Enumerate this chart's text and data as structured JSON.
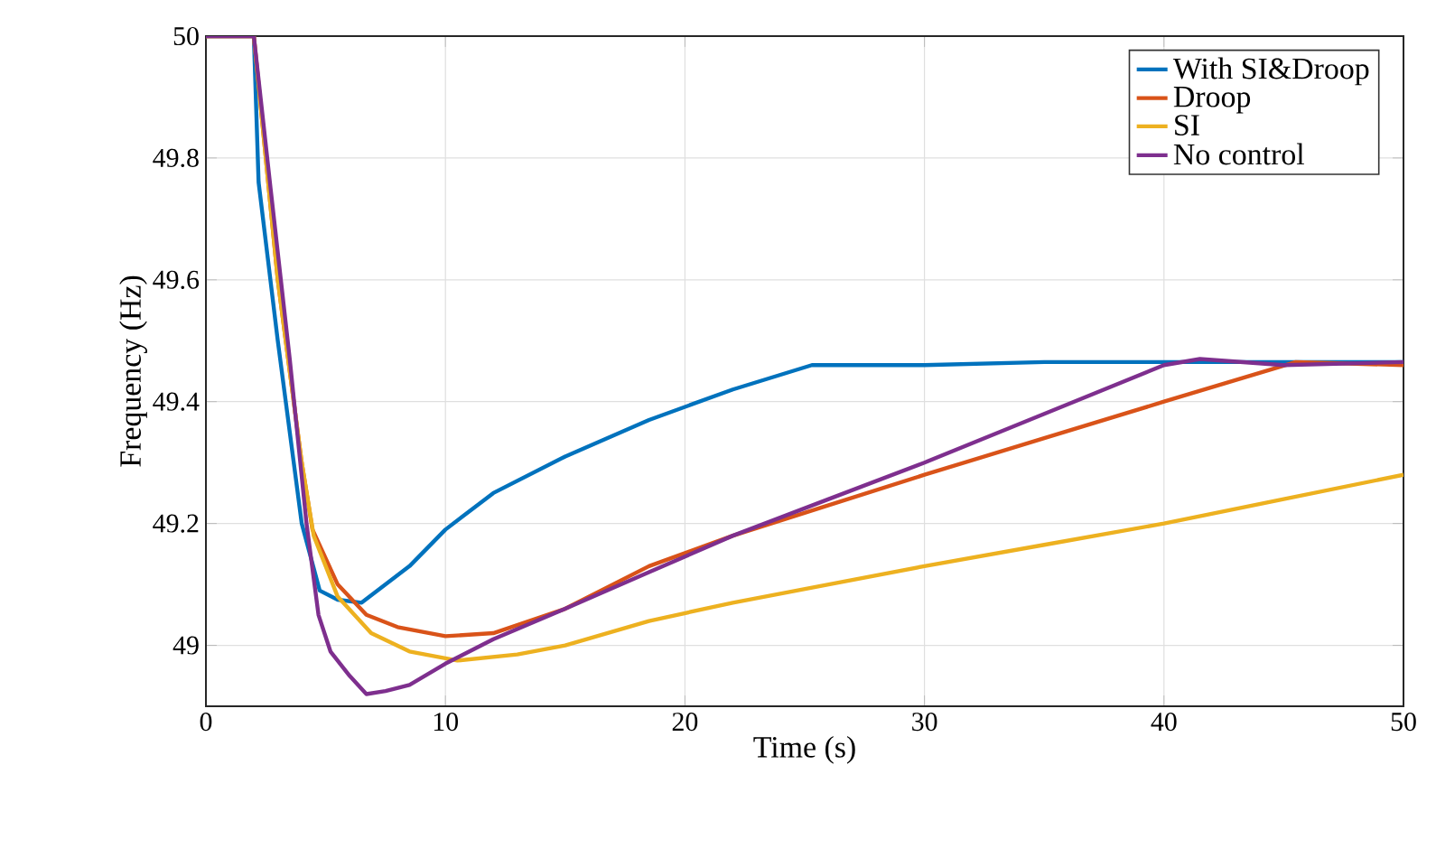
{
  "chart_data": {
    "type": "line",
    "xlabel": "Time (s)",
    "ylabel": "Frequency (Hz)",
    "xlim": [
      0,
      50
    ],
    "ylim": [
      48.9,
      50
    ],
    "xticks": [
      0,
      10,
      20,
      30,
      40,
      50
    ],
    "yticks": [
      49,
      49.2,
      49.4,
      49.6,
      49.8,
      50
    ],
    "grid": true,
    "legend": "top right",
    "line_style": "solid",
    "series": [
      {
        "name": "With SI&Droop",
        "color": "#0072bd",
        "x": [
          0,
          2,
          2.2,
          3,
          4,
          4.75,
          5.5,
          6.5,
          7.5,
          8.5,
          10,
          12,
          15,
          18.5,
          22,
          25.3,
          27,
          30,
          35,
          40,
          45,
          50
        ],
        "values": [
          50,
          50,
          49.76,
          49.5,
          49.2,
          49.09,
          49.075,
          49.07,
          49.1,
          49.13,
          49.19,
          49.25,
          49.31,
          49.37,
          49.42,
          49.46,
          49.46,
          49.46,
          49.465,
          49.465,
          49.465,
          49.465
        ]
      },
      {
        "name": "Droop",
        "color": "#d95319",
        "x": [
          0,
          2,
          3,
          4,
          4.45,
          5.5,
          6.7,
          8,
          10,
          12,
          15,
          18.5,
          22,
          26,
          30,
          35,
          40,
          45.5,
          50
        ],
        "values": [
          50,
          50,
          49.6,
          49.3,
          49.19,
          49.1,
          49.05,
          49.03,
          49.015,
          49.02,
          49.06,
          49.13,
          49.18,
          49.23,
          49.28,
          49.34,
          49.4,
          49.465,
          49.46
        ]
      },
      {
        "name": "SI",
        "color": "#edb120",
        "x": [
          0,
          2,
          3,
          4,
          4.5,
          5.5,
          6.9,
          8.5,
          10.5,
          13,
          15,
          18.5,
          22,
          26,
          30,
          35,
          40,
          45,
          50
        ],
        "values": [
          50,
          50,
          49.6,
          49.3,
          49.18,
          49.08,
          49.02,
          48.99,
          48.975,
          48.985,
          49.0,
          49.04,
          49.07,
          49.1,
          49.13,
          49.165,
          49.2,
          49.24,
          49.28
        ]
      },
      {
        "name": "No control",
        "color": "#7e2f8e",
        "x": [
          0,
          2,
          2.7,
          3.5,
          4.2,
          4.7,
          5.2,
          6,
          6.7,
          7.5,
          8.5,
          10,
          12,
          15,
          18.5,
          22,
          26,
          30,
          35,
          40,
          41.5,
          45,
          50
        ],
        "values": [
          50,
          50,
          49.75,
          49.47,
          49.2,
          49.05,
          48.99,
          48.95,
          48.92,
          48.925,
          48.935,
          48.97,
          49.01,
          49.06,
          49.12,
          49.18,
          49.24,
          49.3,
          49.38,
          49.46,
          49.47,
          49.46,
          49.465
        ]
      }
    ]
  }
}
